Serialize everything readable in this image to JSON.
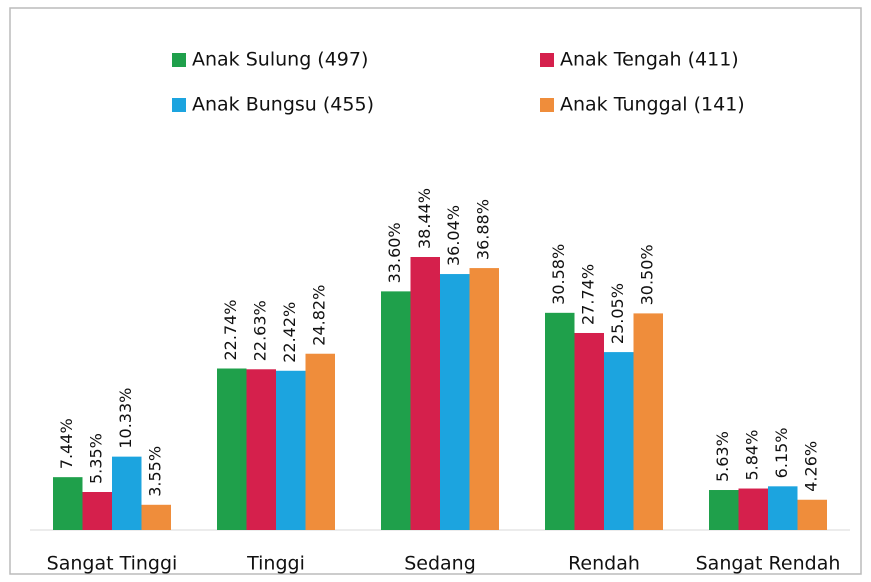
{
  "chart_data": {
    "type": "bar",
    "categories": [
      "Sangat Tinggi",
      "Tinggi",
      "Sedang",
      "Rendah",
      "Sangat Rendah"
    ],
    "series": [
      {
        "name": "Anak Sulung (497)",
        "color": "#1fa04b",
        "values": [
          7.44,
          22.74,
          33.6,
          30.58,
          5.63
        ],
        "value_labels": [
          "7.44%",
          "22.74%",
          "33.60%",
          "30.58%",
          "5.63%"
        ]
      },
      {
        "name": "Anak Tengah (411)",
        "color": "#d5204c",
        "values": [
          5.35,
          22.63,
          38.44,
          27.74,
          5.84
        ],
        "value_labels": [
          "5.35%",
          "22.63%",
          "38.44%",
          "27.74%",
          "5.84%"
        ]
      },
      {
        "name": "Anak Bungsu (455)",
        "color": "#1ca4df",
        "values": [
          10.33,
          22.42,
          36.04,
          25.05,
          6.15
        ],
        "value_labels": [
          "10.33%",
          "22.42%",
          "36.04%",
          "25.05%",
          "6.15%"
        ]
      },
      {
        "name": "Anak Tunggal (141)",
        "color": "#ef8d3b",
        "values": [
          3.55,
          24.82,
          36.88,
          30.5,
          4.26
        ],
        "value_labels": [
          "3.55%",
          "24.82%",
          "36.88%",
          "30.50%",
          "4.26%"
        ]
      }
    ]
  }
}
